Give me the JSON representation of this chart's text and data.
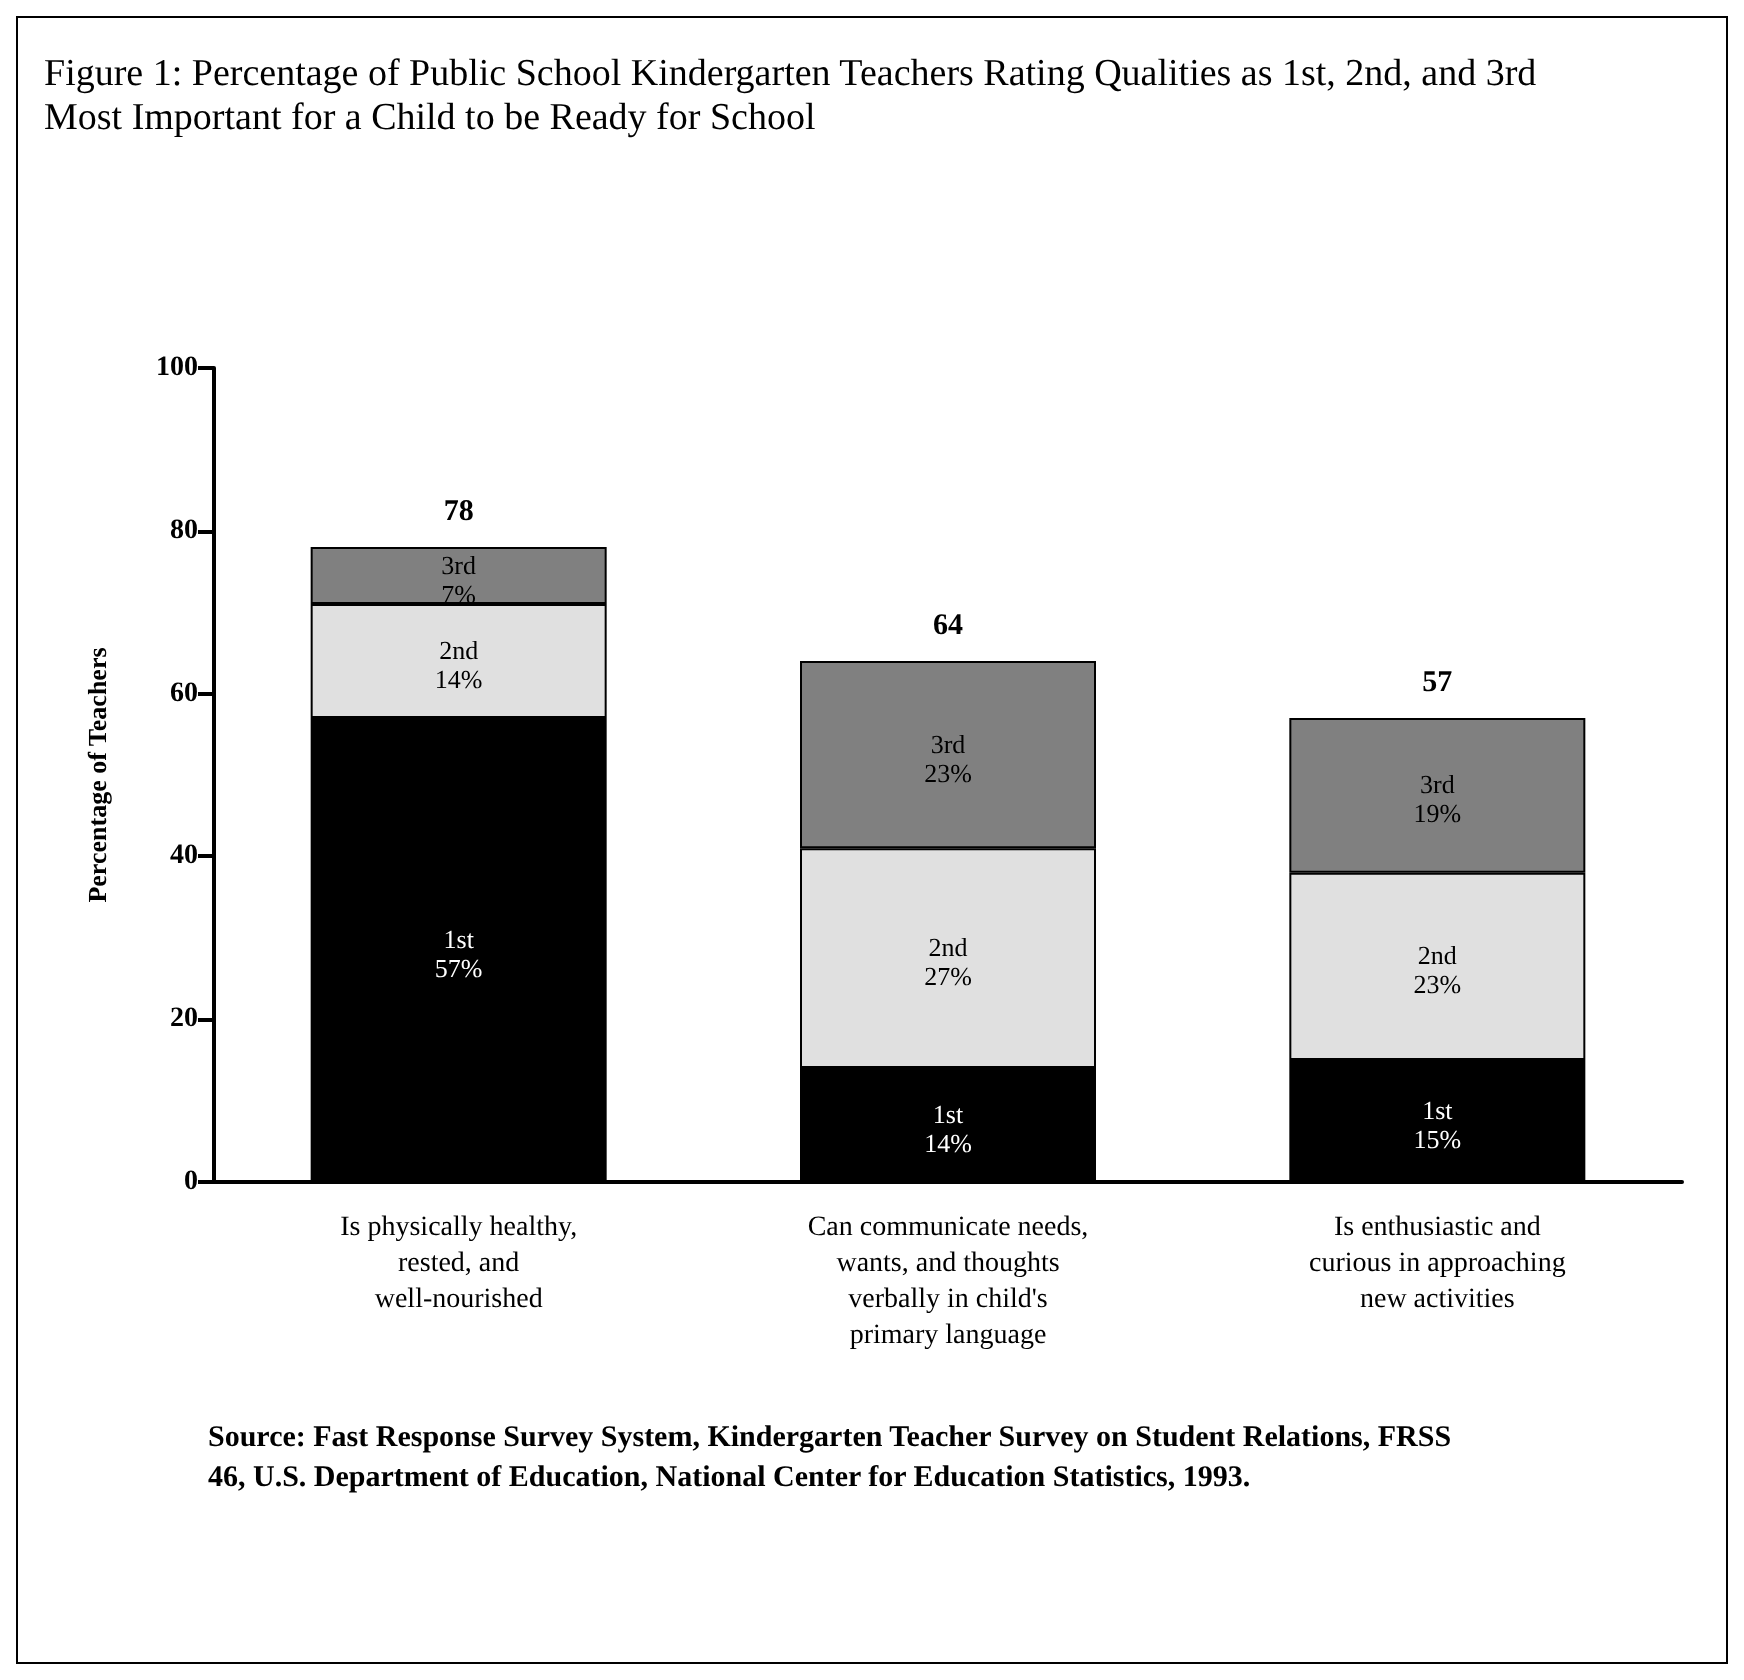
{
  "chart_data": {
    "type": "bar",
    "title": "Figure 1: Percentage of Public School Kindergarten Teachers Rating Qualities as 1st, 2nd, and 3rd Most Important for a Child to be Ready for School",
    "ylabel": "Percentage of Teachers",
    "categories": [
      "Is physically healthy, rested, and well-nourished",
      "Can communicate needs, wants, and thoughts verbally in child's primary language",
      "Is enthusiastic and curious in approaching new activities"
    ],
    "stacked": true,
    "series": [
      {
        "name": "1st",
        "color": "#000000",
        "values": [
          57,
          14,
          15
        ],
        "value_labels": [
          "57%",
          "14%",
          "15%"
        ]
      },
      {
        "name": "2nd",
        "color": "#e0e0e0",
        "values": [
          14,
          27,
          23
        ],
        "value_labels": [
          "14%",
          "27%",
          "23%"
        ]
      },
      {
        "name": "3rd",
        "color": "#808080",
        "values": [
          7,
          23,
          19
        ],
        "value_labels": [
          "7%",
          "23%",
          "19%"
        ]
      }
    ],
    "totals": [
      "78",
      "64",
      "57"
    ],
    "ylim": [
      0,
      100
    ],
    "yticks": [
      0,
      20,
      40,
      60,
      80,
      100
    ],
    "grid": false,
    "legend": false,
    "annotations": [
      "Source: Fast Response Survey System, Kindergarten Teacher Survey on Student Relations, FRSS 46, U.S. Department of Education, National Center for Education Statistics, 1993."
    ]
  }
}
